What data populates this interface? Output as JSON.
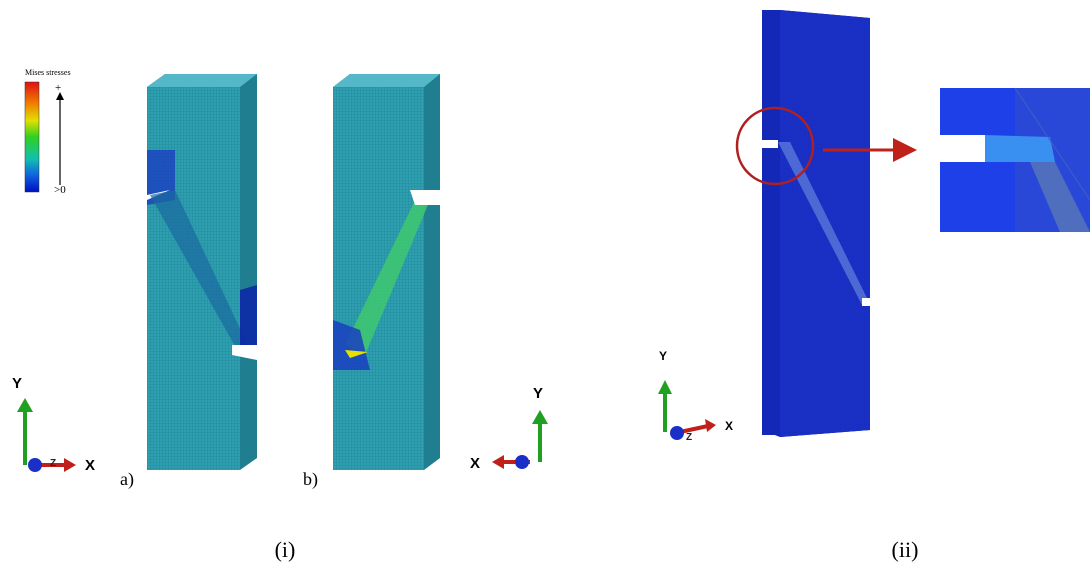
{
  "legend": {
    "title": "Mises stresses",
    "max": "+",
    "min": ">0"
  },
  "panels": [
    {
      "label": "a)"
    },
    {
      "label": "b)"
    }
  ],
  "triads": [
    {
      "y": "Y",
      "x": "X",
      "z": "Z"
    },
    {
      "y": "Y",
      "x": "X"
    },
    {
      "y": "Y",
      "x": "X",
      "z": "Z"
    }
  ],
  "captions": [
    "(i)",
    "(ii)"
  ]
}
